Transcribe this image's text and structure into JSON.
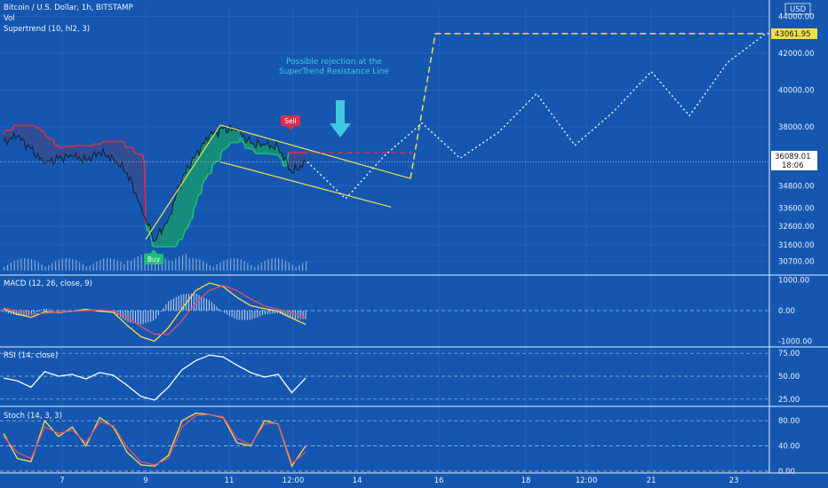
{
  "header": {
    "title": "Bitcoin / U.S. Dollar, 1h, BITSTAMP",
    "vol_label": "Vol",
    "supertrend_label": "Supertrend (10, hl2, 3)",
    "currency": "USD"
  },
  "annotation": {
    "line1": "Possible rejection at the",
    "line2": "SuperTrend Resistance Line"
  },
  "signals": {
    "sell": "Sell",
    "buy": "Buy"
  },
  "price_tag": {
    "target": "43061.95",
    "current": "36089.01",
    "countdown": "18:06"
  },
  "panes": {
    "macd_label": "MACD (12, 26, close, 9)",
    "rsi_label": "RSI (14, close)",
    "stoch_label": "Stoch (14, 3, 3)"
  },
  "colors": {
    "background": "#1557b0",
    "price_line": "#0f1f33",
    "supertrend_up": "#1dbf73",
    "supertrend_down": "#d9304c",
    "channel": "#f3de4a",
    "projection": "#ffffff",
    "target_line": "#f3de4a",
    "annotation": "#3fc8e0",
    "macd": "#f3de4a",
    "signal": "#e34a6f",
    "rsi": "#ffffff",
    "stoch_k": "#e34a6f",
    "stoch_d": "#f3de4a"
  },
  "chart_data": [
    {
      "type": "line",
      "pane": "price",
      "x_ticks": [
        "7",
        "9",
        "11",
        "12:00",
        "14",
        "16",
        "18",
        "12:00",
        "21",
        "23"
      ],
      "y_ticks": [
        "44000.00",
        "42000.00",
        "40000.00",
        "38000.00",
        "34800.00",
        "33600.00",
        "32600.00",
        "31600.00",
        "30700.00"
      ],
      "ylim": [
        30200,
        44500
      ],
      "series": [
        {
          "values": [
            37200,
            37500,
            36800,
            36000,
            36300,
            36400,
            36200,
            36600,
            36300,
            35500,
            33700,
            31800,
            33000,
            35200,
            36500,
            37500,
            37900,
            37800,
            37100,
            37000,
            36900,
            35500,
            36089
          ]
        }
      ],
      "projection": [
        36100,
        34100,
        36400,
        38200,
        36300,
        37700,
        39800,
        37000,
        38800,
        41000,
        38600,
        41500,
        43061
      ],
      "target_level": 43061.95,
      "current_level": 36089.01
    },
    {
      "type": "line",
      "pane": "macd",
      "y_ticks": [
        "1000.00",
        "0.00",
        "-1000.00"
      ],
      "ylim": [
        -1100,
        1100
      ],
      "series": [
        {
          "values": [
            50,
            -120,
            -220,
            -40,
            -60,
            -30,
            40,
            -20,
            -60,
            -480,
            -850,
            -1000,
            -560,
            60,
            650,
            900,
            780,
            430,
            160,
            60,
            -20,
            -250,
            -450
          ]
        },
        {
          "values": [
            80,
            0,
            -110,
            -90,
            -40,
            -30,
            0,
            20,
            -20,
            -220,
            -520,
            -770,
            -780,
            -320,
            250,
            660,
            820,
            650,
            380,
            150,
            40,
            -60,
            -250
          ]
        }
      ]
    },
    {
      "type": "line",
      "pane": "rsi",
      "y_ticks": [
        "75.00",
        "50.00",
        "25.00"
      ],
      "ylim": [
        20,
        80
      ],
      "series": [
        {
          "values": [
            48,
            45,
            38,
            55,
            50,
            52,
            47,
            54,
            51,
            40,
            28,
            24,
            38,
            57,
            67,
            73,
            71,
            62,
            54,
            49,
            52,
            32,
            48
          ]
        }
      ]
    },
    {
      "type": "line",
      "pane": "stoch",
      "y_ticks": [
        "80.00",
        "40.00",
        "0.00"
      ],
      "ylim": [
        0,
        100
      ],
      "series": [
        {
          "values": [
            60,
            20,
            15,
            80,
            55,
            70,
            40,
            85,
            70,
            30,
            10,
            8,
            25,
            80,
            92,
            90,
            85,
            45,
            40,
            80,
            75,
            8,
            40
          ]
        },
        {
          "values": [
            55,
            30,
            20,
            70,
            60,
            65,
            45,
            78,
            72,
            38,
            15,
            10,
            20,
            70,
            88,
            90,
            86,
            52,
            42,
            75,
            76,
            12,
            30
          ]
        }
      ]
    }
  ]
}
